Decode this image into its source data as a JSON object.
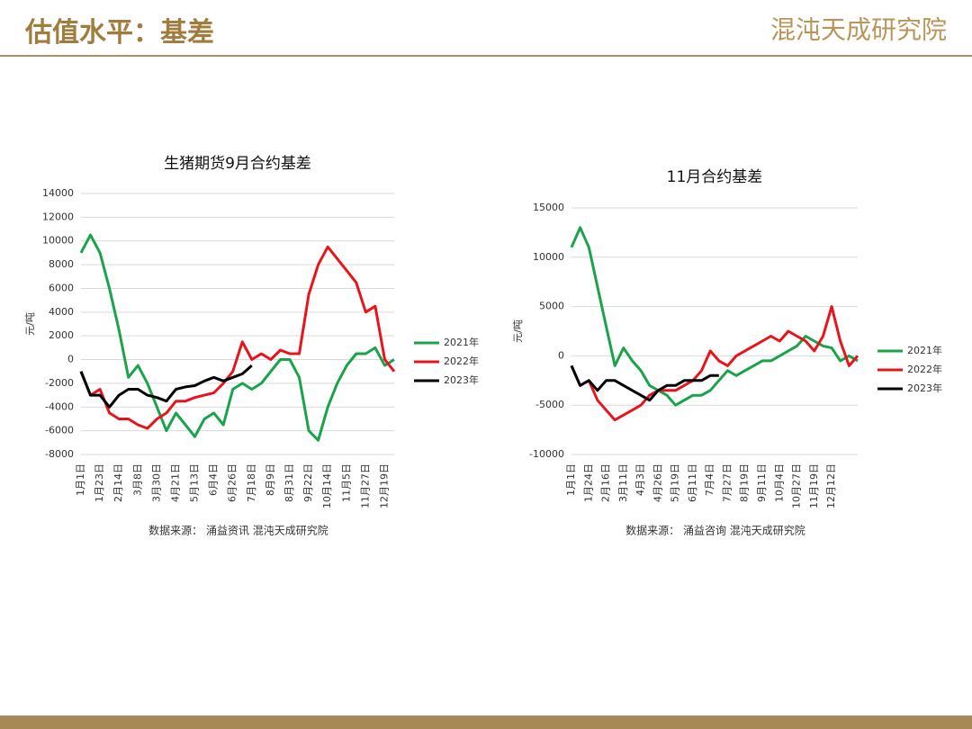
{
  "page": {
    "title": "估值水平：基差",
    "logo": "混沌天成研究院"
  },
  "chart_data": [
    {
      "type": "line",
      "title": "生猪期货9月合约基差",
      "y_label": "元/吨",
      "source": "数据来源： 涌益资讯 混沌天成研究院",
      "categories": [
        "1月1日",
        null,
        "1月23日",
        null,
        "2月14日",
        null,
        "3月8日",
        null,
        "3月30日",
        null,
        "4月21日",
        null,
        "5月13日",
        null,
        "6月4日",
        null,
        "6月26日",
        null,
        "7月18日",
        null,
        "8月9日",
        null,
        "8月31日",
        null,
        "9月22日",
        null,
        "10月14日",
        null,
        "11月5日",
        null,
        "11月27日",
        null,
        "12月19日",
        null
      ],
      "ylim": [
        -8000,
        14000
      ],
      "yticks": [
        -8000,
        -6000,
        -4000,
        -2000,
        0,
        2000,
        4000,
        6000,
        8000,
        10000,
        12000,
        14000
      ],
      "grid": true,
      "series": [
        {
          "name": "2021年",
          "color": "#1aa34a",
          "values": [
            9000,
            10500,
            9000,
            6000,
            2500,
            -1500,
            -500,
            -2000,
            -4000,
            -6000,
            -4500,
            -5500,
            -6500,
            -5000,
            -4500,
            -5500,
            -2500,
            -2000,
            -2500,
            -2000,
            -1000,
            0,
            0,
            -1500,
            -6000,
            -6800,
            -4000,
            -2000,
            -500,
            500,
            500,
            1000,
            -500,
            0
          ]
        },
        {
          "name": "2022年",
          "color": "#e8141b",
          "values": [
            -1000,
            -3000,
            -2500,
            -4500,
            -5000,
            -5000,
            -5500,
            -5800,
            -5000,
            -4500,
            -3500,
            -3500,
            -3200,
            -3000,
            -2800,
            -2000,
            -1000,
            1500,
            0,
            500,
            0,
            800,
            500,
            500,
            5500,
            8000,
            9500,
            8500,
            7500,
            6500,
            4000,
            4500,
            0,
            -1000
          ]
        },
        {
          "name": "2023年",
          "color": "#000000",
          "values": [
            -1000,
            -3000,
            -3000,
            -4000,
            -3000,
            -2500,
            -2500,
            -3000,
            -3200,
            -3500,
            -2500,
            -2300,
            -2200,
            -1800,
            -1500,
            -1800,
            -1500,
            -1200,
            -500,
            null,
            null,
            null,
            null,
            null,
            null,
            null,
            null,
            null,
            null,
            null,
            null,
            null,
            null,
            null
          ]
        }
      ]
    },
    {
      "type": "line",
      "title": "11月合约基差",
      "y_label": "元/吨",
      "source": "数据来源： 涌益咨询 混沌天成研究院",
      "categories": [
        "1月1日",
        null,
        "1月24日",
        null,
        "2月16日",
        null,
        "3月11日",
        null,
        "4月3日",
        null,
        "4月26日",
        null,
        "5月19日",
        null,
        "6月11日",
        null,
        "7月4日",
        null,
        "7月27日",
        null,
        "8月19日",
        null,
        "9月11日",
        null,
        "10月4日",
        null,
        "10月27日",
        null,
        "11月19日",
        null,
        "12月12日",
        null,
        null,
        null
      ],
      "ylim": [
        -10000,
        15000
      ],
      "yticks": [
        -10000,
        -5000,
        0,
        5000,
        10000,
        15000
      ],
      "grid": true,
      "series": [
        {
          "name": "2021年",
          "color": "#1aa34a",
          "values": [
            11000,
            13000,
            11000,
            7000,
            3000,
            -1000,
            800,
            -500,
            -1500,
            -3000,
            -3500,
            -4000,
            -5000,
            -4500,
            -4000,
            -4000,
            -3500,
            -2500,
            -1500,
            -2000,
            -1500,
            -1000,
            -500,
            -500,
            0,
            500,
            1000,
            2000,
            1500,
            1000,
            800,
            -500,
            0,
            -500
          ]
        },
        {
          "name": "2022年",
          "color": "#e8141b",
          "values": [
            -1000,
            -3000,
            -2500,
            -4500,
            -5500,
            -6500,
            -6000,
            -5500,
            -5000,
            -4000,
            -3500,
            -3500,
            -3500,
            -3000,
            -2500,
            -1500,
            500,
            -500,
            -1000,
            0,
            500,
            1000,
            1500,
            2000,
            1500,
            2500,
            2000,
            1500,
            500,
            2000,
            5000,
            1500,
            -1000,
            0
          ]
        },
        {
          "name": "2023年",
          "color": "#000000",
          "values": [
            -1000,
            -3000,
            -2500,
            -3500,
            -2500,
            -2500,
            -3000,
            -3500,
            -4000,
            -4500,
            -3500,
            -3000,
            -3000,
            -2500,
            -2500,
            -2500,
            -2000,
            -2000,
            null,
            null,
            null,
            null,
            null,
            null,
            null,
            null,
            null,
            null,
            null,
            null,
            null,
            null,
            null,
            null
          ]
        }
      ]
    }
  ]
}
